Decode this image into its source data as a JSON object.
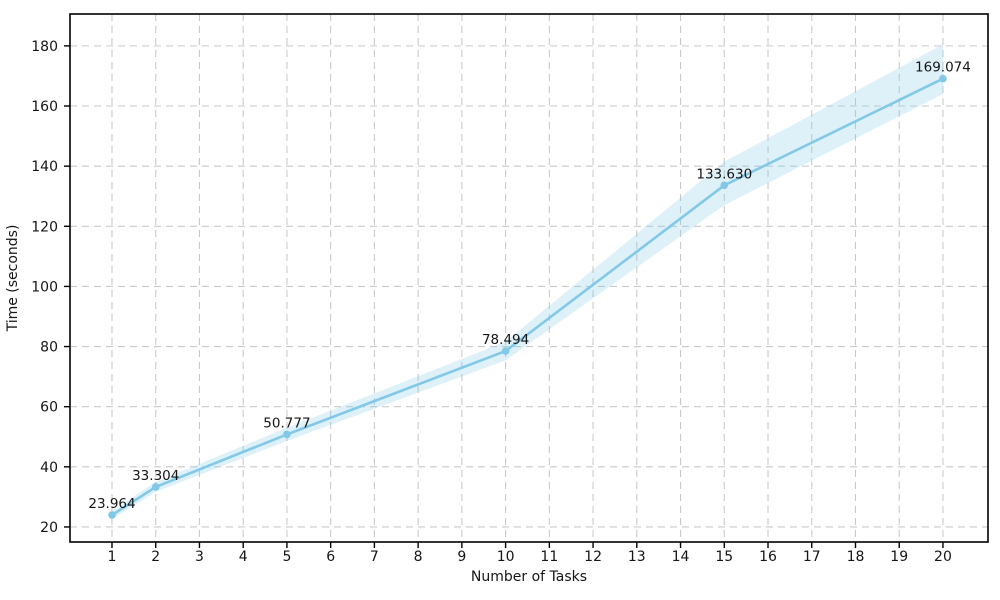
{
  "chart_data": {
    "type": "line",
    "title": "",
    "xlabel": "Number of Tasks",
    "ylabel": "Time (seconds)",
    "x": [
      1,
      2,
      5,
      10,
      15,
      20
    ],
    "values": [
      23.964,
      33.304,
      50.777,
      78.494,
      133.63,
      169.074
    ],
    "point_labels": [
      "23.964",
      "33.304",
      "50.777",
      "78.494",
      "133.630",
      "169.074"
    ],
    "band_upper": [
      25.3,
      35.0,
      53.0,
      81.6,
      141.5,
      180.5
    ],
    "band_lower": [
      22.6,
      31.7,
      48.6,
      75.4,
      127.0,
      164.0
    ],
    "x_ticks": [
      1,
      2,
      3,
      4,
      5,
      6,
      7,
      8,
      9,
      10,
      11,
      12,
      13,
      14,
      15,
      16,
      17,
      18,
      19,
      20
    ],
    "y_ticks": [
      20,
      40,
      60,
      80,
      100,
      120,
      140,
      160,
      180
    ],
    "xlim": [
      0.04,
      21.03
    ],
    "ylim": [
      15.0,
      190.6
    ],
    "grid": true,
    "grid_style": "dashed",
    "legend": null,
    "colors": {
      "line": "#82c9e8",
      "marker": "#82c9e8",
      "band": "#87ceeb",
      "band_opacity": 0.28,
      "grid": "#c9c9c9",
      "spine": "#000000",
      "text": "#151515"
    }
  }
}
